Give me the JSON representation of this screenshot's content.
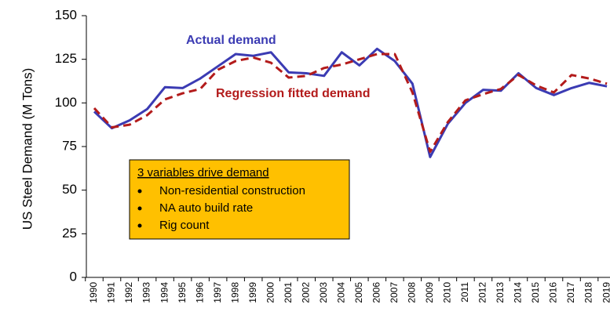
{
  "chart_data": {
    "type": "line",
    "y_label": "US Steel Demand (M Tons)",
    "categories": [
      "1990",
      "1991",
      "1992",
      "1993",
      "1994",
      "1995",
      "1996",
      "1997",
      "1998",
      "1999",
      "2000",
      "2001",
      "2002",
      "2003",
      "2004",
      "2005",
      "2006",
      "2007",
      "2008",
      "2009",
      "2010",
      "2011",
      "2012",
      "2013",
      "2014",
      "2015",
      "2016",
      "2017",
      "2018",
      "2019"
    ],
    "series": [
      {
        "name": "Actual demand",
        "color": "#3b3bb3",
        "dash": false,
        "values": [
          95,
          85.5,
          90,
          96.5,
          109,
          108.5,
          114,
          121,
          128,
          127,
          129,
          117.5,
          117,
          115.5,
          129,
          121.5,
          131,
          124,
          111,
          69,
          88,
          100,
          107.5,
          107,
          117,
          108.5,
          104.5,
          108.5,
          111.5,
          109.5
        ]
      },
      {
        "name": "Regression fitted demand",
        "color": "#b31b1b",
        "dash": true,
        "values": [
          97,
          86,
          87.5,
          93,
          102,
          105.5,
          108,
          119,
          124,
          126,
          123,
          114.5,
          115.5,
          120,
          122,
          125,
          128,
          128,
          106,
          72,
          89,
          101.5,
          105,
          108,
          116,
          110,
          106,
          116,
          114,
          111
        ]
      }
    ],
    "ylim": [
      0,
      150
    ],
    "yticks": [
      0,
      25,
      50,
      75,
      100,
      125,
      150
    ],
    "grid": false,
    "callout": {
      "title": "3 variables drive demand",
      "items": [
        "Non-residential construction",
        "NA auto build rate",
        "Rig count"
      ],
      "color": "#ffc000"
    }
  }
}
